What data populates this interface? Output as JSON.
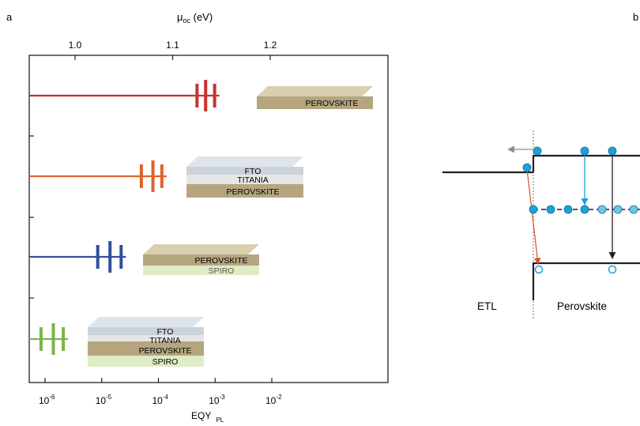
{
  "panels": {
    "a": {
      "label": "a"
    },
    "b": {
      "label": "b"
    }
  },
  "colors": {
    "red": "#c8312d",
    "orange": "#e0622b",
    "blue": "#2f4e9e",
    "green": "#7bb547",
    "cyan": "#1ba2d9",
    "perovskite": "#b5a680",
    "spiro": "#deedc5",
    "titania": "#e4e4e4",
    "fto": "#c4cdd6",
    "arrow_grey": "#8e8e8e",
    "arrow_orange": "#d4512c",
    "axis": "#231f20"
  },
  "chart_data": {
    "type": "scatter",
    "title": "",
    "x_top_label": "μoc (eV)",
    "x_top_ticks": [
      "1.0",
      "1.1",
      "1.2"
    ],
    "x_top_tick_values": [
      1.0,
      1.1,
      1.2
    ],
    "x_bottom_label": "EQY PL",
    "x_bottom_label_parts": {
      "base": "EQY",
      "sub": "PL"
    },
    "x_bottom_ticks": [
      {
        "base": "10",
        "exp": "-6",
        "value": 1e-06
      },
      {
        "base": "10",
        "exp": "-5",
        "value": 1e-05
      },
      {
        "base": "10",
        "exp": "-4",
        "value": 0.0001
      },
      {
        "base": "10",
        "exp": "-3",
        "value": 0.001
      },
      {
        "base": "10",
        "exp": "-2",
        "value": 0.01
      }
    ],
    "x_scale": "log",
    "xlim": [
      4e-07,
      0.1
    ],
    "ylabel": "",
    "grid": false,
    "series": [
      {
        "stack": [
          "PEROVSKITE"
        ],
        "color_key": "red",
        "eqy_values": [
          0.00048,
          0.00068,
          0.00098
        ],
        "uoc_values": [
          1.144,
          1.154,
          1.164
        ]
      },
      {
        "stack": [
          "FTO",
          "TITANIA",
          "PEROVSKITE"
        ],
        "color_key": "orange",
        "eqy_values": [
          5e-05,
          8e-05,
          0.000115
        ],
        "uoc_values": [
          1.074,
          1.086,
          1.096
        ]
      },
      {
        "stack": [
          "PEROVSKITE",
          "SPIRO"
        ],
        "color_key": "blue",
        "eqy_values": [
          8.5e-06,
          1.4e-05,
          2.2e-05
        ],
        "uoc_values": [
          1.026,
          1.038,
          1.05
        ]
      },
      {
        "stack": [
          "FTO",
          "TITANIA",
          "PEROVSKITE",
          "SPIRO"
        ],
        "color_key": "green",
        "eqy_values": [
          8.5e-07,
          1.4e-06,
          2.1e-06
        ],
        "uoc_values": [
          0.966,
          0.978,
          0.988
        ]
      }
    ]
  },
  "diagram_b": {
    "left_label": "ETL",
    "right_label": "Perovskite"
  }
}
